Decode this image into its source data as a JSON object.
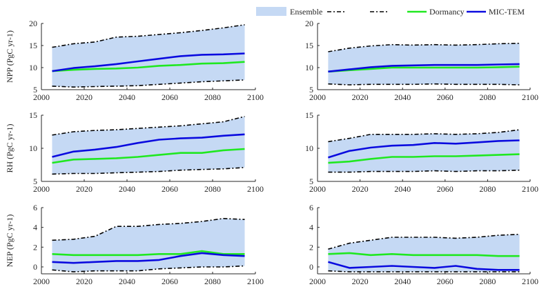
{
  "legend": {
    "ensemble": "Ensemble",
    "dormancy": "Dormancy",
    "mictem": "MIC-TEM"
  },
  "colors": {
    "ensemble_fill": "#c5d9f4",
    "bounds": "#000000",
    "dormancy": "#1fe81f",
    "mictem": "#0a0adf",
    "axis": "#262626"
  },
  "chart_data": [
    {
      "type": "line",
      "ylabel": "NPP (PgC yr-1)",
      "ylim": [
        5,
        20
      ],
      "yticks": [
        5,
        10,
        15,
        20
      ],
      "xlim": [
        2000,
        2100
      ],
      "xticks": [
        2000,
        2020,
        2040,
        2060,
        2080,
        2100
      ],
      "x": [
        2005,
        2015,
        2025,
        2035,
        2045,
        2055,
        2065,
        2075,
        2085,
        2095
      ],
      "series": [
        {
          "name": "Ensemble",
          "role": "upper",
          "values": [
            14.6,
            15.4,
            15.8,
            16.9,
            17.1,
            17.5,
            17.9,
            18.4,
            19.0,
            19.7
          ]
        },
        {
          "name": "Ensemble",
          "role": "lower",
          "values": [
            5.8,
            5.6,
            5.7,
            5.8,
            5.9,
            6.2,
            6.5,
            6.8,
            7.0,
            7.2
          ]
        },
        {
          "name": "Dormancy",
          "values": [
            9.2,
            9.5,
            9.7,
            9.8,
            10.0,
            10.4,
            10.6,
            10.9,
            11.0,
            11.3
          ]
        },
        {
          "name": "MIC-TEM",
          "values": [
            9.2,
            9.9,
            10.3,
            10.8,
            11.4,
            12.0,
            12.6,
            12.9,
            13.0,
            13.2
          ]
        }
      ]
    },
    {
      "type": "line",
      "ylabel": "",
      "ylim": [
        5,
        20
      ],
      "yticks": [
        5,
        10,
        15,
        20
      ],
      "xlim": [
        2000,
        2100
      ],
      "xticks": [
        2000,
        2020,
        2040,
        2060,
        2080,
        2100
      ],
      "x": [
        2005,
        2015,
        2025,
        2035,
        2045,
        2055,
        2065,
        2075,
        2085,
        2095
      ],
      "series": [
        {
          "name": "Ensemble",
          "role": "upper",
          "values": [
            13.6,
            14.4,
            14.9,
            15.2,
            15.1,
            15.2,
            15.1,
            15.2,
            15.4,
            15.5
          ]
        },
        {
          "name": "Ensemble",
          "role": "lower",
          "values": [
            6.3,
            6.1,
            6.2,
            6.2,
            6.2,
            6.3,
            6.2,
            6.2,
            6.2,
            6.1
          ]
        },
        {
          "name": "Dormancy",
          "values": [
            9.1,
            9.4,
            9.7,
            10.0,
            10.0,
            10.0,
            10.0,
            10.0,
            10.1,
            10.2
          ]
        },
        {
          "name": "MIC-TEM",
          "values": [
            9.1,
            9.6,
            10.1,
            10.4,
            10.5,
            10.6,
            10.6,
            10.6,
            10.7,
            10.8
          ]
        }
      ]
    },
    {
      "type": "line",
      "ylabel": "RH (PgC yr-1)",
      "ylim": [
        5,
        15
      ],
      "yticks": [
        5,
        10,
        15
      ],
      "xlim": [
        2000,
        2100
      ],
      "xticks": [
        2000,
        2020,
        2040,
        2060,
        2080,
        2100
      ],
      "x": [
        2005,
        2015,
        2025,
        2035,
        2045,
        2055,
        2065,
        2075,
        2085,
        2095
      ],
      "series": [
        {
          "name": "Ensemble",
          "role": "upper",
          "values": [
            12.0,
            12.5,
            12.7,
            12.8,
            13.0,
            13.2,
            13.4,
            13.7,
            14.0,
            14.8
          ]
        },
        {
          "name": "Ensemble",
          "role": "lower",
          "values": [
            6.1,
            6.2,
            6.2,
            6.3,
            6.4,
            6.5,
            6.7,
            6.8,
            6.9,
            7.1
          ]
        },
        {
          "name": "Dormancy",
          "values": [
            7.8,
            8.3,
            8.4,
            8.5,
            8.7,
            9.0,
            9.3,
            9.3,
            9.7,
            9.9
          ]
        },
        {
          "name": "MIC-TEM",
          "values": [
            8.7,
            9.5,
            9.8,
            10.2,
            10.8,
            11.3,
            11.5,
            11.6,
            11.9,
            12.1
          ]
        }
      ]
    },
    {
      "type": "line",
      "ylabel": "",
      "ylim": [
        5,
        15
      ],
      "yticks": [
        5,
        10,
        15
      ],
      "xlim": [
        2000,
        2100
      ],
      "xticks": [
        2000,
        2020,
        2040,
        2060,
        2080,
        2100
      ],
      "x": [
        2005,
        2015,
        2025,
        2035,
        2045,
        2055,
        2065,
        2075,
        2085,
        2095
      ],
      "series": [
        {
          "name": "Ensemble",
          "role": "upper",
          "values": [
            11.0,
            11.5,
            12.1,
            12.1,
            12.1,
            12.2,
            12.1,
            12.2,
            12.4,
            12.8
          ]
        },
        {
          "name": "Ensemble",
          "role": "lower",
          "values": [
            6.4,
            6.4,
            6.5,
            6.5,
            6.5,
            6.6,
            6.5,
            6.6,
            6.6,
            6.7
          ]
        },
        {
          "name": "Dormancy",
          "values": [
            7.8,
            8.0,
            8.4,
            8.7,
            8.7,
            8.8,
            8.8,
            8.9,
            9.0,
            9.1
          ]
        },
        {
          "name": "MIC-TEM",
          "values": [
            8.6,
            9.6,
            10.1,
            10.4,
            10.5,
            10.8,
            10.7,
            10.9,
            11.1,
            11.2
          ]
        }
      ]
    },
    {
      "type": "line",
      "ylabel": "NEP (PgC yr-1)",
      "ylim": [
        -0.7,
        6
      ],
      "yticks": [
        0,
        2,
        4,
        6
      ],
      "xlim": [
        2000,
        2100
      ],
      "xticks": [
        2000,
        2020,
        2040,
        2060,
        2080,
        2100
      ],
      "x": [
        2005,
        2015,
        2025,
        2035,
        2045,
        2055,
        2065,
        2075,
        2085,
        2095
      ],
      "series": [
        {
          "name": "Ensemble",
          "role": "upper",
          "values": [
            2.7,
            2.8,
            3.1,
            4.1,
            4.1,
            4.3,
            4.4,
            4.6,
            4.9,
            4.8
          ]
        },
        {
          "name": "Ensemble",
          "role": "lower",
          "values": [
            -0.3,
            -0.5,
            -0.4,
            -0.4,
            -0.4,
            -0.2,
            -0.1,
            0.0,
            0.0,
            0.1
          ]
        },
        {
          "name": "Dormancy",
          "values": [
            1.3,
            1.2,
            1.2,
            1.2,
            1.2,
            1.3,
            1.3,
            1.6,
            1.3,
            1.3
          ]
        },
        {
          "name": "MIC-TEM",
          "values": [
            0.5,
            0.4,
            0.5,
            0.6,
            0.6,
            0.7,
            1.1,
            1.4,
            1.2,
            1.1
          ]
        }
      ]
    },
    {
      "type": "line",
      "ylabel": "",
      "ylim": [
        -0.7,
        6
      ],
      "yticks": [
        0,
        2,
        4,
        6
      ],
      "xlim": [
        2000,
        2100
      ],
      "xticks": [
        2000,
        2020,
        2040,
        2060,
        2080,
        2100
      ],
      "x": [
        2005,
        2015,
        2025,
        2035,
        2045,
        2055,
        2065,
        2075,
        2085,
        2095
      ],
      "series": [
        {
          "name": "Ensemble",
          "role": "upper",
          "values": [
            1.8,
            2.4,
            2.7,
            3.0,
            3.0,
            3.0,
            2.9,
            3.0,
            3.2,
            3.3
          ]
        },
        {
          "name": "Ensemble",
          "role": "lower",
          "values": [
            -0.4,
            -0.5,
            -0.5,
            -0.5,
            -0.5,
            -0.5,
            -0.5,
            -0.5,
            -0.5,
            -0.5
          ]
        },
        {
          "name": "Dormancy",
          "values": [
            1.3,
            1.4,
            1.2,
            1.3,
            1.2,
            1.2,
            1.2,
            1.2,
            1.1,
            1.1
          ]
        },
        {
          "name": "MIC-TEM",
          "values": [
            0.5,
            -0.1,
            0.0,
            0.1,
            0.0,
            -0.1,
            0.1,
            -0.2,
            -0.3,
            -0.3
          ]
        }
      ]
    }
  ]
}
